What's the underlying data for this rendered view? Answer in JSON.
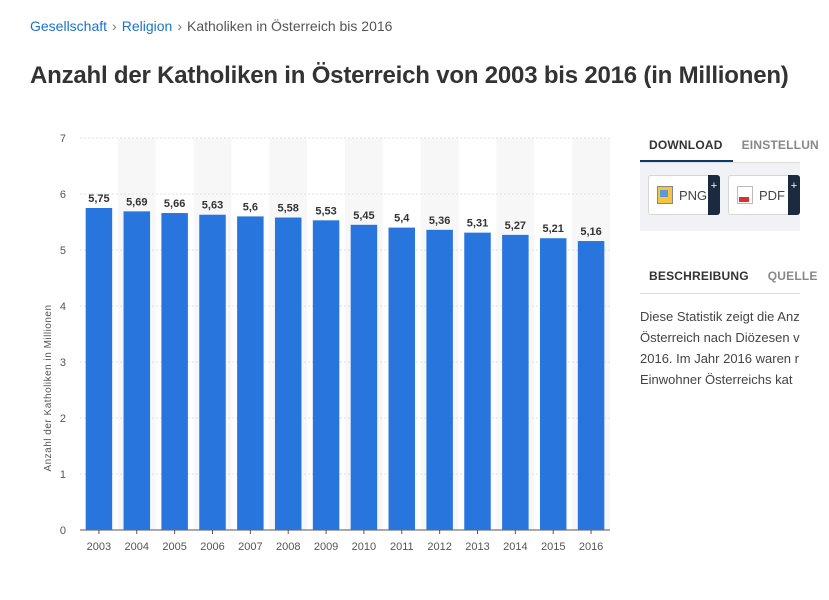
{
  "breadcrumb": {
    "items": [
      "Gesellschaft",
      "Religion",
      "Katholiken in Österreich bis 2016"
    ],
    "separator": "›"
  },
  "title": "Anzahl der Katholiken in Österreich von 2003 bis 2016 (in Millionen)",
  "side": {
    "tabs_top": [
      "DOWNLOAD",
      "EINSTELLUN"
    ],
    "buttons": [
      {
        "label": "PNG",
        "icon": "png-file-icon"
      },
      {
        "label": "PDF",
        "icon": "pdf-file-icon"
      }
    ],
    "tabs_bottom": [
      "BESCHREIBUNG",
      "QUELLE"
    ],
    "description_lines": [
      "Diese Statistik zeigt die Anz",
      "Österreich nach Diözesen v",
      "2016. Im Jahr 2016 waren r",
      "Einwohner Österreichs kat"
    ]
  },
  "chart_data": {
    "type": "bar",
    "categories": [
      "2003",
      "2004",
      "2005",
      "2006",
      "2007",
      "2008",
      "2009",
      "2010",
      "2011",
      "2012",
      "2013",
      "2014",
      "2015",
      "2016"
    ],
    "values": [
      5.75,
      5.69,
      5.66,
      5.63,
      5.6,
      5.58,
      5.53,
      5.45,
      5.4,
      5.36,
      5.31,
      5.27,
      5.21,
      5.16
    ],
    "value_labels": [
      "5,75",
      "5,69",
      "5,66",
      "5,63",
      "5,6",
      "5,58",
      "5,53",
      "5,45",
      "5,4",
      "5,36",
      "5,31",
      "5,27",
      "5,21",
      "5,16"
    ],
    "ylabel": "Anzahl der Katholiken in Millionen",
    "ylim": [
      0,
      7
    ],
    "yticks": [
      0,
      1,
      2,
      3,
      4,
      5,
      6,
      7
    ],
    "grid": true,
    "bar_color": "#2876dd",
    "band_color": "#f7f7f7"
  }
}
